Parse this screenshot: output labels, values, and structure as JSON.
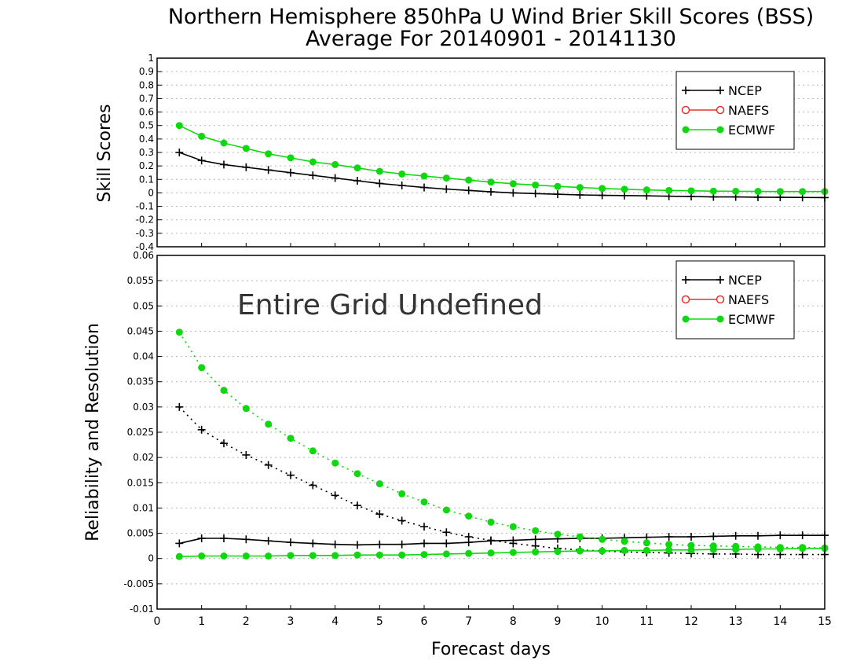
{
  "colors": {
    "ncep": "#000000",
    "naefs": "#e8332e",
    "ecmwf": "#10d810",
    "grid": "#b5b5b5"
  },
  "chart_data": [
    {
      "type": "line",
      "title": "Northern Hemisphere 850hPa U Wind Brier Skill Scores (BSS)",
      "subtitle": "Average For 20140901 - 20141130",
      "ylabel": "Skill Scores",
      "xlabel": "Forecast days",
      "xlim": [
        0,
        15
      ],
      "ylim": [
        -0.4,
        1
      ],
      "yticks": [
        "1",
        "0.9",
        "0.8",
        "0.7",
        "0.6",
        "0.5",
        "0.4",
        "0.3",
        "0.2",
        "0.1",
        "0",
        "-0.1",
        "-0.2",
        "-0.3",
        "-0.4"
      ],
      "ytick_values": [
        1,
        0.9,
        0.8,
        0.7,
        0.6,
        0.5,
        0.4,
        0.3,
        0.2,
        0.1,
        0,
        -0.1,
        -0.2,
        -0.3,
        -0.4
      ],
      "grid": true,
      "legend_position": "top-right",
      "legend": [
        "NCEP",
        "NAEFS",
        "ECMWF"
      ],
      "x": [
        0.5,
        1,
        1.5,
        2,
        2.5,
        3,
        3.5,
        4,
        4.5,
        5,
        5.5,
        6,
        6.5,
        7,
        7.5,
        8,
        8.5,
        9,
        9.5,
        10,
        10.5,
        11,
        11.5,
        12,
        12.5,
        13,
        13.5,
        14,
        14.5,
        15
      ],
      "series": [
        {
          "name": "NCEP",
          "style": "solid",
          "marker": "plus",
          "color_key": "ncep",
          "values": [
            0.3,
            0.24,
            0.21,
            0.19,
            0.17,
            0.15,
            0.13,
            0.11,
            0.09,
            0.07,
            0.055,
            0.04,
            0.028,
            0.018,
            0.008,
            0.0,
            -0.005,
            -0.01,
            -0.015,
            -0.018,
            -0.02,
            -0.022,
            -0.025,
            -0.027,
            -0.03,
            -0.03,
            -0.032,
            -0.033,
            -0.034,
            -0.035
          ]
        },
        {
          "name": "ECMWF",
          "style": "solid",
          "marker": "dot",
          "color_key": "ecmwf",
          "values": [
            0.5,
            0.42,
            0.37,
            0.33,
            0.29,
            0.26,
            0.23,
            0.21,
            0.185,
            0.16,
            0.14,
            0.125,
            0.11,
            0.095,
            0.08,
            0.068,
            0.058,
            0.048,
            0.04,
            0.033,
            0.027,
            0.022,
            0.018,
            0.015,
            0.013,
            0.012,
            0.011,
            0.01,
            0.01,
            0.01
          ]
        }
      ]
    },
    {
      "type": "line",
      "ylabel": "Reliability and Resolution",
      "xlabel": "Forecast days",
      "xlim": [
        0,
        15
      ],
      "ylim": [
        -0.01,
        0.06
      ],
      "yticks": [
        "0.06",
        "0.055",
        "0.05",
        "0.045",
        "0.04",
        "0.035",
        "0.03",
        "0.025",
        "0.02",
        "0.015",
        "0.01",
        "0.005",
        "0",
        "-0.005",
        "-0.01"
      ],
      "ytick_values": [
        0.06,
        0.055,
        0.05,
        0.045,
        0.04,
        0.035,
        0.03,
        0.025,
        0.02,
        0.015,
        0.01,
        0.005,
        0,
        -0.005,
        -0.01
      ],
      "xticks": [
        "0",
        "1",
        "2",
        "3",
        "4",
        "5",
        "6",
        "7",
        "8",
        "9",
        "10",
        "11",
        "12",
        "13",
        "14",
        "15"
      ],
      "xtick_values": [
        0,
        1,
        2,
        3,
        4,
        5,
        6,
        7,
        8,
        9,
        10,
        11,
        12,
        13,
        14,
        15
      ],
      "grid": true,
      "annotation": "Entire Grid Undefined",
      "legend_position": "top-right",
      "legend": [
        "NCEP",
        "NAEFS",
        "ECMWF"
      ],
      "x": [
        0.5,
        1,
        1.5,
        2,
        2.5,
        3,
        3.5,
        4,
        4.5,
        5,
        5.5,
        6,
        6.5,
        7,
        7.5,
        8,
        8.5,
        9,
        9.5,
        10,
        10.5,
        11,
        11.5,
        12,
        12.5,
        13,
        13.5,
        14,
        14.5,
        15
      ],
      "series": [
        {
          "name": "NCEP",
          "style": "dotted",
          "marker": "plus",
          "color_key": "ncep",
          "values": [
            0.03,
            0.0255,
            0.0228,
            0.0205,
            0.0185,
            0.0165,
            0.0145,
            0.0125,
            0.0105,
            0.0088,
            0.0075,
            0.0063,
            0.0052,
            0.0043,
            0.0036,
            0.003,
            0.0025,
            0.002,
            0.0017,
            0.0015,
            0.0013,
            0.0012,
            0.0011,
            0.001,
            0.0009,
            0.0009,
            0.0008,
            0.0008,
            0.0008,
            0.0008
          ]
        },
        {
          "name": "NCEP",
          "style": "solid",
          "marker": "plus",
          "color_key": "ncep",
          "values": [
            0.003,
            0.004,
            0.004,
            0.0038,
            0.0035,
            0.0032,
            0.003,
            0.0028,
            0.0027,
            0.0028,
            0.0028,
            0.003,
            0.003,
            0.0032,
            0.0035,
            0.0036,
            0.0038,
            0.0039,
            0.004,
            0.004,
            0.0041,
            0.0042,
            0.0043,
            0.0043,
            0.0044,
            0.0045,
            0.0045,
            0.0046,
            0.0046,
            0.0046
          ]
        },
        {
          "name": "ECMWF",
          "style": "dotted",
          "marker": "dot",
          "color_key": "ecmwf",
          "values": [
            0.0448,
            0.0378,
            0.0333,
            0.0297,
            0.0266,
            0.0238,
            0.0213,
            0.0189,
            0.0168,
            0.0148,
            0.0128,
            0.0112,
            0.0096,
            0.0084,
            0.0072,
            0.0063,
            0.0055,
            0.0048,
            0.0043,
            0.0038,
            0.0034,
            0.0031,
            0.0028,
            0.0026,
            0.0025,
            0.0024,
            0.0023,
            0.0022,
            0.0022,
            0.0021
          ]
        },
        {
          "name": "ECMWF",
          "style": "solid",
          "marker": "dot",
          "color_key": "ecmwf",
          "values": [
            0.0004,
            0.0005,
            0.0005,
            0.0005,
            0.0005,
            0.0006,
            0.0006,
            0.0006,
            0.0007,
            0.0007,
            0.0007,
            0.0008,
            0.0009,
            0.001,
            0.0011,
            0.0012,
            0.0013,
            0.0014,
            0.0015,
            0.0015,
            0.0016,
            0.0016,
            0.0017,
            0.0017,
            0.0018,
            0.0018,
            0.0019,
            0.0019,
            0.002,
            0.002
          ]
        }
      ]
    }
  ]
}
